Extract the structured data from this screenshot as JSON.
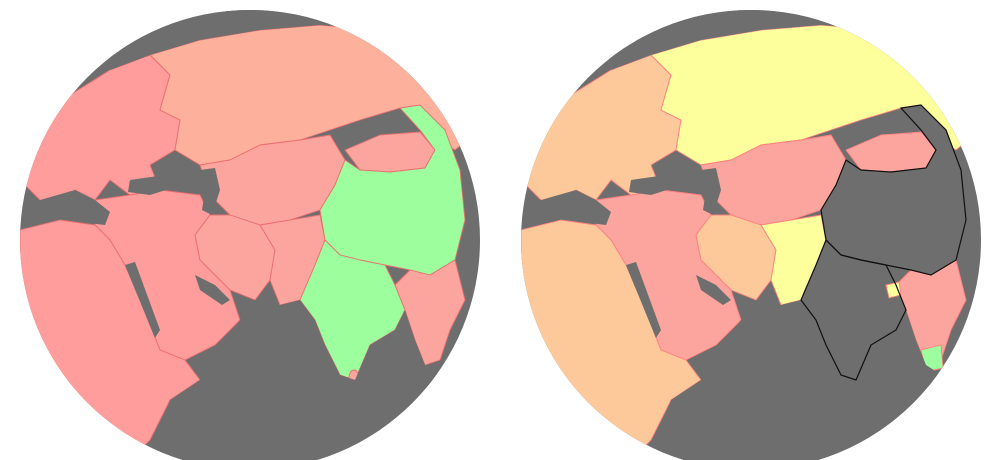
{
  "colors": {
    "background": "#ffffff",
    "ocean": "#6e6e6e",
    "lake": "#6e6e6e",
    "salmon": "#fdb09c",
    "red": "#ff9c9c",
    "pink": "#fca49e",
    "orange": "#fdc89a",
    "yellow": "#fdfe9c",
    "green": "#9cfe9c",
    "border_light": "#ff8080",
    "border_left": "#e87070",
    "outline_dark": "#101010"
  },
  "maps": [
    {
      "name": "globe-left",
      "description_icon": "orthographic-globe-icon",
      "regions": [
        {
          "name": "russia",
          "fill": "salmon"
        },
        {
          "name": "europe",
          "fill": "red"
        },
        {
          "name": "middle-east",
          "fill": "red"
        },
        {
          "name": "africa",
          "fill": "red"
        },
        {
          "name": "central-asia",
          "fill": "pink"
        },
        {
          "name": "mongolia",
          "fill": "pink"
        },
        {
          "name": "iran",
          "fill": "pink"
        },
        {
          "name": "afghanistan-pakistan",
          "fill": "pink"
        },
        {
          "name": "china",
          "fill": "green"
        },
        {
          "name": "india",
          "fill": "green"
        },
        {
          "name": "southeast-asia",
          "fill": "pink"
        },
        {
          "name": "sri-lanka",
          "fill": "pink"
        }
      ]
    },
    {
      "name": "globe-right",
      "description_icon": "orthographic-globe-icon",
      "regions": [
        {
          "name": "russia",
          "fill": "yellow"
        },
        {
          "name": "europe",
          "fill": "orange"
        },
        {
          "name": "middle-east",
          "fill": "pink"
        },
        {
          "name": "africa",
          "fill": "orange"
        },
        {
          "name": "central-asia",
          "fill": "pink"
        },
        {
          "name": "mongolia",
          "fill": "pink"
        },
        {
          "name": "iran",
          "fill": "orange"
        },
        {
          "name": "pakistan",
          "fill": "yellow"
        },
        {
          "name": "china",
          "fill": "ocean"
        },
        {
          "name": "india",
          "fill": "ocean"
        },
        {
          "name": "southeast-asia",
          "fill": "pink"
        },
        {
          "name": "bhutan",
          "fill": "yellow"
        },
        {
          "name": "vietnam-south",
          "fill": "green"
        }
      ]
    }
  ]
}
